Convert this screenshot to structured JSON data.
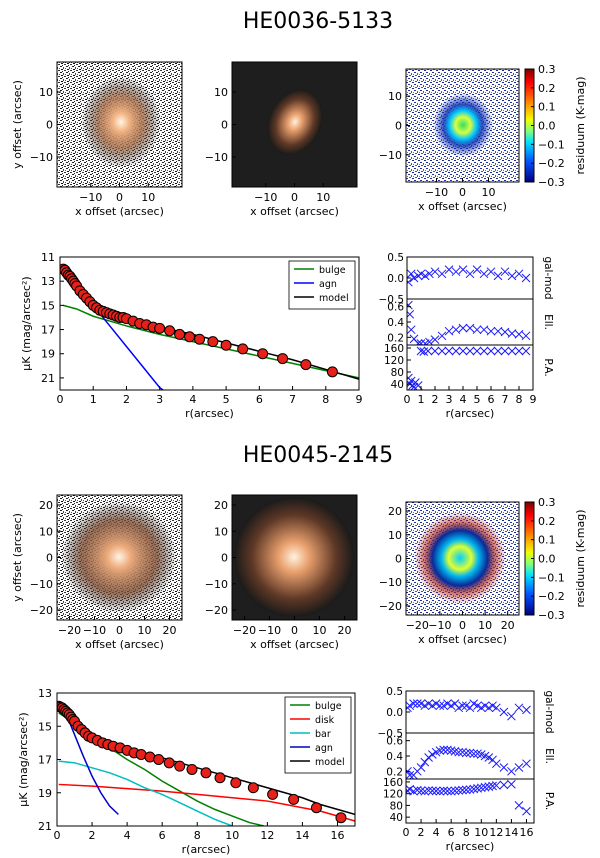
{
  "figures": [
    {
      "title": "HE0036-5133",
      "img_xlabel": "x offset (arcsec)",
      "img_ylabel": "y offset (arcsec)",
      "img_xticks": [
        "−10",
        "0",
        "10"
      ],
      "img_yticks": [
        "10",
        "0",
        "−10"
      ],
      "colorbar_label": "residuum (K-mag)",
      "colorbar_ticks": [
        "0.3",
        "0.2",
        "0.1",
        "0.0",
        "−0.1",
        "−0.2",
        "−0.3"
      ],
      "profile_xlabel": "r(arcsec)",
      "profile_ylabel": "μK (mag/arcsec²)",
      "profile_xticks": [
        "0",
        "1",
        "2",
        "3",
        "4",
        "5",
        "6",
        "7",
        "8",
        "9"
      ],
      "profile_yticks": [
        "11",
        "13",
        "15",
        "17",
        "19",
        "21"
      ],
      "legend": [
        "bulge",
        "agn",
        "model"
      ],
      "side_xlabel": "r(arcsec)",
      "side_xticks": [
        "0",
        "1",
        "2",
        "3",
        "4",
        "5",
        "6",
        "7",
        "8",
        "9"
      ],
      "side_labels": [
        "gal-mod",
        "Ell.",
        "P.A."
      ],
      "side_yticks": [
        [
          "0.5",
          "0.0",
          "−0.5"
        ],
        [
          "0.6",
          "0.4",
          "0.2"
        ],
        [
          "160",
          "120",
          "80",
          "40"
        ]
      ]
    },
    {
      "title": "HE0045-2145",
      "img_xlabel": "x offset (arcsec)",
      "img_ylabel": "y offset (arcsec)",
      "img_xticks": [
        "−20",
        "−10",
        "0",
        "10",
        "20"
      ],
      "img_yticks": [
        "20",
        "10",
        "0",
        "−10",
        "−20"
      ],
      "colorbar_label": "residuum (K-mag)",
      "colorbar_ticks": [
        "0.3",
        "0.2",
        "0.1",
        "0.0",
        "−0.1",
        "−0.2",
        "−0.3"
      ],
      "profile_xlabel": "r(arcsec)",
      "profile_ylabel": "μK (mag/arcsec²)",
      "profile_xticks": [
        "0",
        "2",
        "4",
        "6",
        "8",
        "10",
        "12",
        "14",
        "16"
      ],
      "profile_yticks": [
        "13",
        "15",
        "17",
        "19",
        "21"
      ],
      "legend": [
        "bulge",
        "disk",
        "bar",
        "agn",
        "model"
      ],
      "side_xlabel": "r(arcsec)",
      "side_xticks": [
        "0",
        "2",
        "4",
        "6",
        "8",
        "10",
        "12",
        "14",
        "16"
      ],
      "side_labels": [
        "gal-mod",
        "Ell.",
        "P.A."
      ],
      "side_yticks": [
        [
          "0.5",
          "0.0",
          "−0.5"
        ],
        [
          "0.6",
          "0.4",
          "0.2"
        ],
        [
          "160",
          "120",
          "80",
          "40"
        ]
      ]
    }
  ],
  "chart_data": [
    {
      "type": "line",
      "title": "HE0036-5133",
      "xlabel": "r(arcsec)",
      "ylabel": "μK (mag/arcsec²)",
      "xlim": [
        0,
        9
      ],
      "ylim": [
        22,
        11
      ],
      "y_inverted": true,
      "series": [
        {
          "name": "bulge",
          "color": "#008000",
          "x": [
            0.1,
            0.5,
            1.0,
            1.5,
            2.0,
            3.0,
            4.0,
            5.0,
            6.0,
            7.0,
            8.0,
            9.0
          ],
          "y": [
            15.0,
            15.3,
            15.9,
            16.3,
            16.7,
            17.4,
            18.0,
            18.6,
            19.2,
            19.8,
            20.4,
            21.0
          ]
        },
        {
          "name": "agn",
          "color": "#0000ff",
          "x": [
            0.1,
            0.5,
            1.0,
            1.5,
            2.0,
            2.5,
            3.0,
            3.1
          ],
          "y": [
            12.2,
            13.4,
            15.0,
            16.7,
            18.4,
            20.1,
            21.8,
            22.0
          ]
        },
        {
          "name": "model",
          "color": "#000000",
          "x": [
            0.1,
            0.3,
            0.5,
            0.8,
            1.0,
            1.3,
            1.6,
            2.0,
            2.5,
            3.0,
            4.0,
            5.0,
            6.0,
            7.0,
            8.0,
            9.0
          ],
          "y": [
            12.0,
            12.6,
            13.1,
            14.0,
            14.6,
            15.2,
            15.6,
            16.0,
            16.4,
            16.8,
            17.4,
            18.1,
            18.8,
            19.5,
            20.3,
            21.1
          ]
        },
        {
          "name": "data",
          "color": "#ff0000",
          "x": [
            0.1,
            0.15,
            0.2,
            0.25,
            0.3,
            0.35,
            0.4,
            0.45,
            0.5,
            0.6,
            0.7,
            0.8,
            0.9,
            1.0,
            1.1,
            1.2,
            1.3,
            1.4,
            1.5,
            1.6,
            1.7,
            1.8,
            1.9,
            2.0,
            2.2,
            2.4,
            2.6,
            2.8,
            3.0,
            3.3,
            3.6,
            3.9,
            4.2,
            4.6,
            5.0,
            5.5,
            6.1,
            6.7,
            7.4,
            8.2
          ],
          "y": [
            12.0,
            12.1,
            12.3,
            12.5,
            12.6,
            12.8,
            13.0,
            13.2,
            13.4,
            13.8,
            14.1,
            14.4,
            14.7,
            15.0,
            15.2,
            15.4,
            15.5,
            15.6,
            15.7,
            15.8,
            15.9,
            16.0,
            16.0,
            16.1,
            16.3,
            16.5,
            16.6,
            16.8,
            16.9,
            17.1,
            17.4,
            17.6,
            17.8,
            18.0,
            18.3,
            18.6,
            19.0,
            19.4,
            19.9,
            20.5
          ]
        }
      ],
      "side_panels": {
        "gal_mod": {
          "ylim": [
            -0.5,
            0.5
          ],
          "x": [
            0.1,
            0.3,
            0.5,
            0.8,
            1.0,
            1.3,
            1.6,
            2.0,
            2.5,
            3.0,
            3.5,
            4.0,
            4.5,
            5.0,
            5.5,
            6.0,
            6.5,
            7.0,
            7.5,
            8.0,
            8.5
          ],
          "y": [
            -0.1,
            0.1,
            0.0,
            0.05,
            0.1,
            0.05,
            0.1,
            0.15,
            0.1,
            0.2,
            0.15,
            0.2,
            0.1,
            0.2,
            0.1,
            0.15,
            0.05,
            0.15,
            0.05,
            0.1,
            0.0
          ]
        },
        "ell": {
          "ylim": [
            0.1,
            0.7
          ],
          "x": [
            0.1,
            0.2,
            0.3,
            0.5,
            0.8,
            1.0,
            1.3,
            1.6,
            2.0,
            2.5,
            3.0,
            3.5,
            4.0,
            4.5,
            5.0,
            5.5,
            6.0,
            6.5,
            7.0,
            7.5,
            8.0,
            8.5
          ],
          "y": [
            0.62,
            0.5,
            0.3,
            0.18,
            0.12,
            0.12,
            0.12,
            0.14,
            0.17,
            0.22,
            0.28,
            0.3,
            0.32,
            0.32,
            0.3,
            0.3,
            0.28,
            0.28,
            0.27,
            0.25,
            0.24,
            0.22
          ]
        },
        "pa": {
          "ylim": [
            20,
            170
          ],
          "x": [
            0.1,
            0.2,
            0.3,
            0.4,
            0.5,
            0.6,
            0.8,
            1.0,
            1.2,
            1.5,
            2.0,
            2.5,
            3.0,
            3.5,
            4.0,
            4.5,
            5.0,
            5.5,
            6.0,
            6.5,
            7.0,
            7.5,
            8.0,
            8.5
          ],
          "y": [
            60,
            40,
            50,
            35,
            30,
            45,
            35,
            150,
            148,
            150,
            150,
            150,
            150,
            150,
            150,
            150,
            150,
            150,
            150,
            150,
            150,
            150,
            150,
            150
          ]
        }
      }
    },
    {
      "type": "line",
      "title": "HE0045-2145",
      "xlabel": "r(arcsec)",
      "ylabel": "μK (mag/arcsec²)",
      "xlim": [
        0,
        17
      ],
      "ylim": [
        21,
        13
      ],
      "y_inverted": true,
      "series": [
        {
          "name": "bulge",
          "color": "#008000",
          "x": [
            0.1,
            1,
            2,
            3,
            4,
            5,
            6,
            7,
            8,
            9,
            10,
            11,
            11.8
          ],
          "y": [
            14.2,
            14.8,
            15.6,
            16.3,
            17.0,
            17.6,
            18.3,
            18.9,
            19.5,
            20.0,
            20.4,
            20.8,
            21.0
          ]
        },
        {
          "name": "disk",
          "color": "#ff0000",
          "x": [
            0.1,
            2,
            4,
            6,
            8,
            10,
            11,
            12,
            13,
            14,
            15,
            16,
            17
          ],
          "y": [
            18.5,
            18.6,
            18.75,
            18.9,
            19.1,
            19.3,
            19.4,
            19.5,
            19.7,
            19.9,
            20.1,
            20.4,
            20.7
          ]
        },
        {
          "name": "bar",
          "color": "#00bfbf",
          "x": [
            0.1,
            1,
            2,
            3,
            4,
            5,
            6,
            7,
            8,
            9,
            10
          ],
          "y": [
            17.1,
            17.2,
            17.5,
            17.8,
            18.2,
            18.7,
            19.1,
            19.6,
            20.1,
            20.6,
            21.0
          ]
        },
        {
          "name": "agn",
          "color": "#0000cc",
          "x": [
            0.1,
            0.5,
            1.0,
            1.5,
            2.0,
            2.5,
            3.0,
            3.5
          ],
          "y": [
            13.5,
            14.2,
            15.5,
            16.8,
            18.0,
            19.0,
            19.8,
            20.3
          ]
        },
        {
          "name": "model",
          "color": "#000000",
          "x": [
            0.1,
            0.3,
            0.6,
            1.0,
            1.5,
            2.0,
            3,
            4,
            5,
            6,
            7,
            8,
            9,
            10,
            11,
            12,
            13,
            14,
            15,
            16,
            17
          ],
          "y": [
            13.8,
            13.9,
            14.1,
            14.6,
            15.2,
            15.6,
            16.0,
            16.3,
            16.6,
            16.9,
            17.2,
            17.5,
            17.8,
            18.1,
            18.4,
            18.7,
            19.0,
            19.3,
            19.7,
            20.0,
            20.3
          ]
        },
        {
          "name": "data",
          "color": "#ff0000",
          "x": [
            0.1,
            0.2,
            0.3,
            0.4,
            0.5,
            0.6,
            0.7,
            0.8,
            0.9,
            1.0,
            1.2,
            1.4,
            1.6,
            1.8,
            2.0,
            2.3,
            2.6,
            2.9,
            3.2,
            3.6,
            4.0,
            4.4,
            4.8,
            5.3,
            5.8,
            6.4,
            7.0,
            7.7,
            8.5,
            9.3,
            10.2,
            11.2,
            12.3,
            13.5,
            14.8,
            16.2
          ],
          "y": [
            13.8,
            13.85,
            13.9,
            14.0,
            14.1,
            14.2,
            14.3,
            14.45,
            14.6,
            14.7,
            15.0,
            15.2,
            15.4,
            15.6,
            15.7,
            15.85,
            16.0,
            16.1,
            16.2,
            16.3,
            16.45,
            16.6,
            16.7,
            16.85,
            17.0,
            17.2,
            17.4,
            17.6,
            17.8,
            18.1,
            18.4,
            18.7,
            19.1,
            19.4,
            19.9,
            20.5
          ]
        }
      ],
      "side_panels": {
        "gal_mod": {
          "ylim": [
            -0.5,
            0.5
          ],
          "x": [
            0.2,
            0.5,
            1,
            1.5,
            2,
            2.5,
            3,
            3.5,
            4,
            4.5,
            5,
            5.5,
            6,
            6.5,
            7,
            7.5,
            8,
            8.5,
            9,
            9.5,
            10,
            10.5,
            11,
            11.5,
            12,
            13,
            14,
            15,
            16
          ],
          "y": [
            0.1,
            0.15,
            0.2,
            0.2,
            0.2,
            0.15,
            0.2,
            0.15,
            0.2,
            0.15,
            0.15,
            0.2,
            0.15,
            0.2,
            0.1,
            0.15,
            0.15,
            0.1,
            0.2,
            0.15,
            0.1,
            0.15,
            0.1,
            0.15,
            0.1,
            0.0,
            -0.1,
            0.1,
            0.05
          ]
        },
        "ell": {
          "ylim": [
            0.1,
            0.7
          ],
          "x": [
            0.2,
            0.5,
            1,
            1.5,
            2,
            2.5,
            3,
            3.5,
            4,
            4.5,
            5,
            5.5,
            6,
            6.5,
            7,
            7.5,
            8,
            8.5,
            9,
            9.5,
            10,
            10.5,
            11,
            11.5,
            12,
            13,
            14,
            15,
            16
          ],
          "y": [
            0.2,
            0.15,
            0.15,
            0.2,
            0.25,
            0.32,
            0.38,
            0.42,
            0.45,
            0.47,
            0.48,
            0.48,
            0.47,
            0.46,
            0.45,
            0.45,
            0.44,
            0.44,
            0.43,
            0.43,
            0.42,
            0.4,
            0.38,
            0.35,
            0.3,
            0.25,
            0.2,
            0.25,
            0.3
          ]
        },
        "pa": {
          "ylim": [
            20,
            170
          ],
          "x": [
            0.2,
            0.5,
            1,
            1.5,
            2,
            2.5,
            3,
            3.5,
            4,
            4.5,
            5,
            5.5,
            6,
            6.5,
            7,
            7.5,
            8,
            8.5,
            9,
            9.5,
            10,
            10.5,
            11,
            11.5,
            12,
            13,
            14,
            15,
            16
          ],
          "y": [
            130,
            135,
            128,
            132,
            130,
            128,
            131,
            130,
            129,
            128,
            130,
            129,
            128,
            130,
            131,
            132,
            133,
            134,
            136,
            138,
            140,
            142,
            144,
            146,
            148,
            150,
            152,
            80,
            60
          ]
        }
      }
    }
  ]
}
